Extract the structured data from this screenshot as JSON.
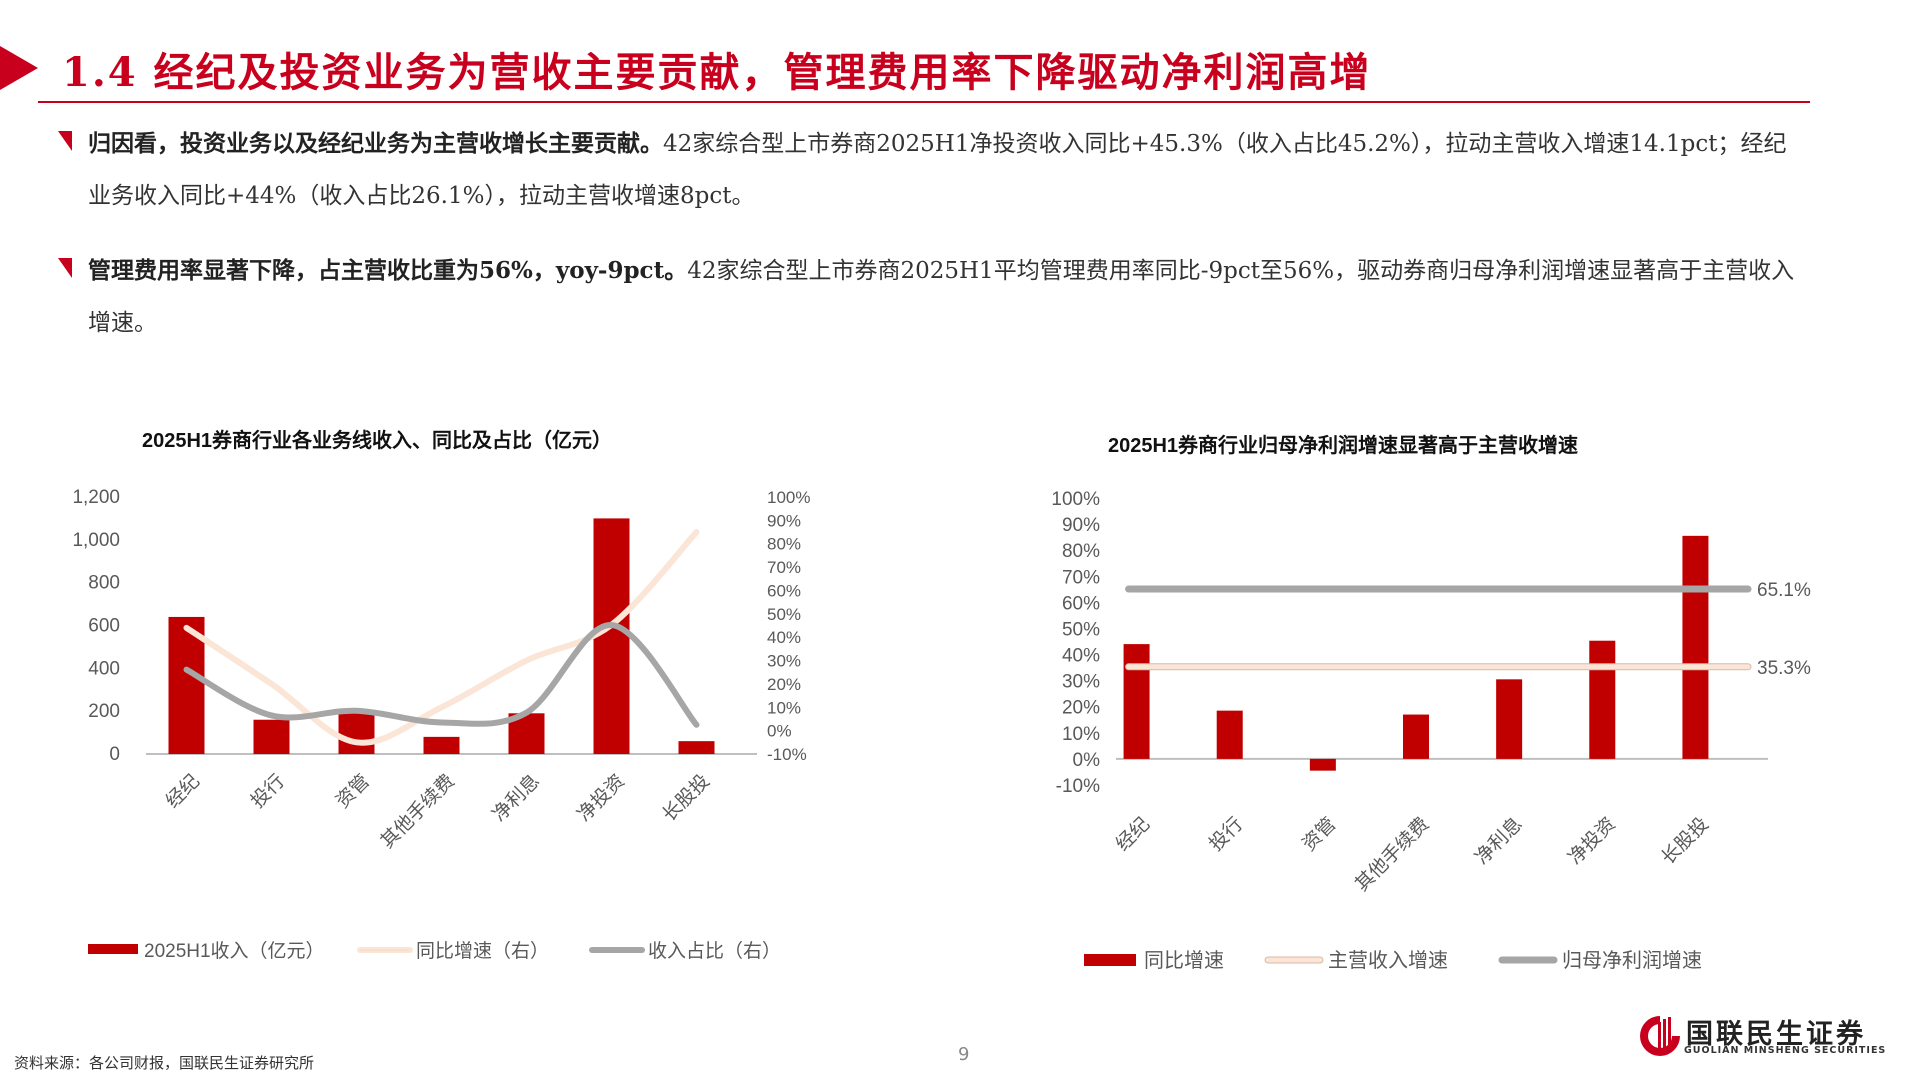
{
  "header": {
    "title": "1.4 经纪及投资业务为营收主要贡献，管理费用率下降驱动净利润高增",
    "accent_color": "#c8001e"
  },
  "paragraphs": [
    {
      "bold": "归因看，投资业务以及经纪业务为主营收增长主要贡献。",
      "text": "42家综合型上市券商2025H1净投资收入同比+45.3%（收入占比45.2%），拉动主营收入增速14.1pct；经纪业务收入同比+44%（收入占比26.1%），拉动主营收增速8pct。"
    },
    {
      "bold": "管理费用率显著下降，占主营收比重为56%，yoy-9pct。",
      "text": "42家综合型上市券商2025H1平均管理费用率同比-9pct至56%，驱动券商归母净利润增速显著高于主营收入增速。"
    }
  ],
  "chart_data": [
    {
      "type": "bar",
      "title": "2025H1券商行业各业务线收入、同比及占比（亿元）",
      "categories": [
        "经纪",
        "投行",
        "资管",
        "其他手续费",
        "净利息",
        "净投资",
        "长股投"
      ],
      "series": [
        {
          "name": "2025H1收入（亿元）",
          "type": "bar",
          "axis": "left",
          "color": "#c00000",
          "values": [
            640,
            160,
            200,
            80,
            190,
            1100,
            60
          ]
        },
        {
          "name": "同比增速（右）",
          "type": "line",
          "axis": "right",
          "color": "#fbe5d6",
          "values": [
            44,
            20,
            -5,
            10,
            30,
            45.3,
            85
          ]
        },
        {
          "name": "收入占比（右）",
          "type": "line",
          "axis": "right",
          "color": "#a6a6a6",
          "values": [
            26.1,
            6.5,
            8.5,
            3.5,
            7.7,
            45.2,
            2.5
          ]
        }
      ],
      "y_left": {
        "ticks": [
          "0",
          "200",
          "400",
          "600",
          "800",
          "1,000",
          "1,200"
        ],
        "ylim": [
          0,
          1200
        ]
      },
      "y_right": {
        "ticks": [
          "-10%",
          "0%",
          "10%",
          "20%",
          "30%",
          "40%",
          "50%",
          "60%",
          "70%",
          "80%",
          "90%",
          "100%"
        ],
        "ylim": [
          -10,
          100
        ]
      },
      "legend": [
        "2025H1收入（亿元）",
        "同比增速（右）",
        "收入占比（右）"
      ],
      "legend_position": "bottom",
      "grid": false
    },
    {
      "type": "bar",
      "title": "2025H1券商行业归母净利润增速显著高于主营收增速",
      "categories": [
        "经纪",
        "投行",
        "资管",
        "其他手续费",
        "净利息",
        "净投资",
        "长股投"
      ],
      "series": [
        {
          "name": "同比增速",
          "type": "bar",
          "color": "#c00000",
          "values": [
            44,
            18.5,
            -4.5,
            17,
            30.5,
            45.3,
            85.5
          ]
        },
        {
          "name": "主营收入增速",
          "type": "line",
          "color": "#fbe5d6",
          "values": [
            35.3,
            35.3,
            35.3,
            35.3,
            35.3,
            35.3,
            35.3
          ],
          "label": "35.3%"
        },
        {
          "name": "归母净利润增速",
          "type": "line",
          "color": "#a6a6a6",
          "values": [
            65.1,
            65.1,
            65.1,
            65.1,
            65.1,
            65.1,
            65.1
          ],
          "label": "65.1%"
        }
      ],
      "y_axis": {
        "ticks": [
          "-10%",
          "0%",
          "10%",
          "20%",
          "30%",
          "40%",
          "50%",
          "60%",
          "70%",
          "80%",
          "90%",
          "100%"
        ],
        "ylim": [
          -10,
          100
        ]
      },
      "legend": [
        "同比增速",
        "主营收入增速",
        "归母净利润增速"
      ],
      "legend_position": "bottom",
      "grid": false
    }
  ],
  "footer": {
    "source": "资料来源：各公司财报，国联民生证券研究所",
    "page_number": "9",
    "logo_cn": "国联民生证券",
    "logo_en": "GUOLIAN MINSHENG SECURITIES"
  }
}
